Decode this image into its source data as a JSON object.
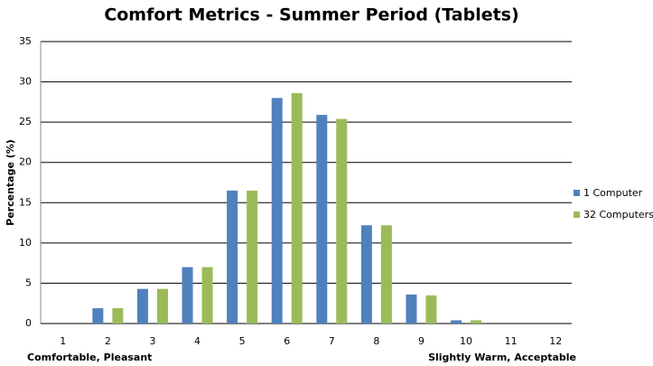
{
  "chart_data": {
    "type": "bar",
    "title": "Comfort Metrics - Summer Period (Tablets)",
    "y_label": "Percentage (%)",
    "annotations": [
      "Comfortable, Pleasant",
      "Slightly Warm, Acceptable"
    ],
    "categories": [
      "1",
      "2",
      "3",
      "4",
      "5",
      "6",
      "7",
      "8",
      "9",
      "10",
      "11",
      "12"
    ],
    "series": [
      {
        "name": "1 Computer",
        "color": "#4f81bd",
        "values": [
          0,
          1.9,
          4.3,
          7,
          16.5,
          28,
          25.9,
          12.2,
          3.6,
          0.4,
          0,
          0
        ]
      },
      {
        "name": "32 Computers",
        "color": "#9bbb59",
        "values": [
          0,
          1.9,
          4.3,
          7,
          16.5,
          28.6,
          25.4,
          12.2,
          3.5,
          0.4,
          0,
          0
        ]
      }
    ],
    "ylim": [
      0,
      35
    ],
    "yticks": [
      0,
      5,
      10,
      15,
      20,
      25,
      30,
      35
    ],
    "grid": true,
    "legend": "right"
  }
}
